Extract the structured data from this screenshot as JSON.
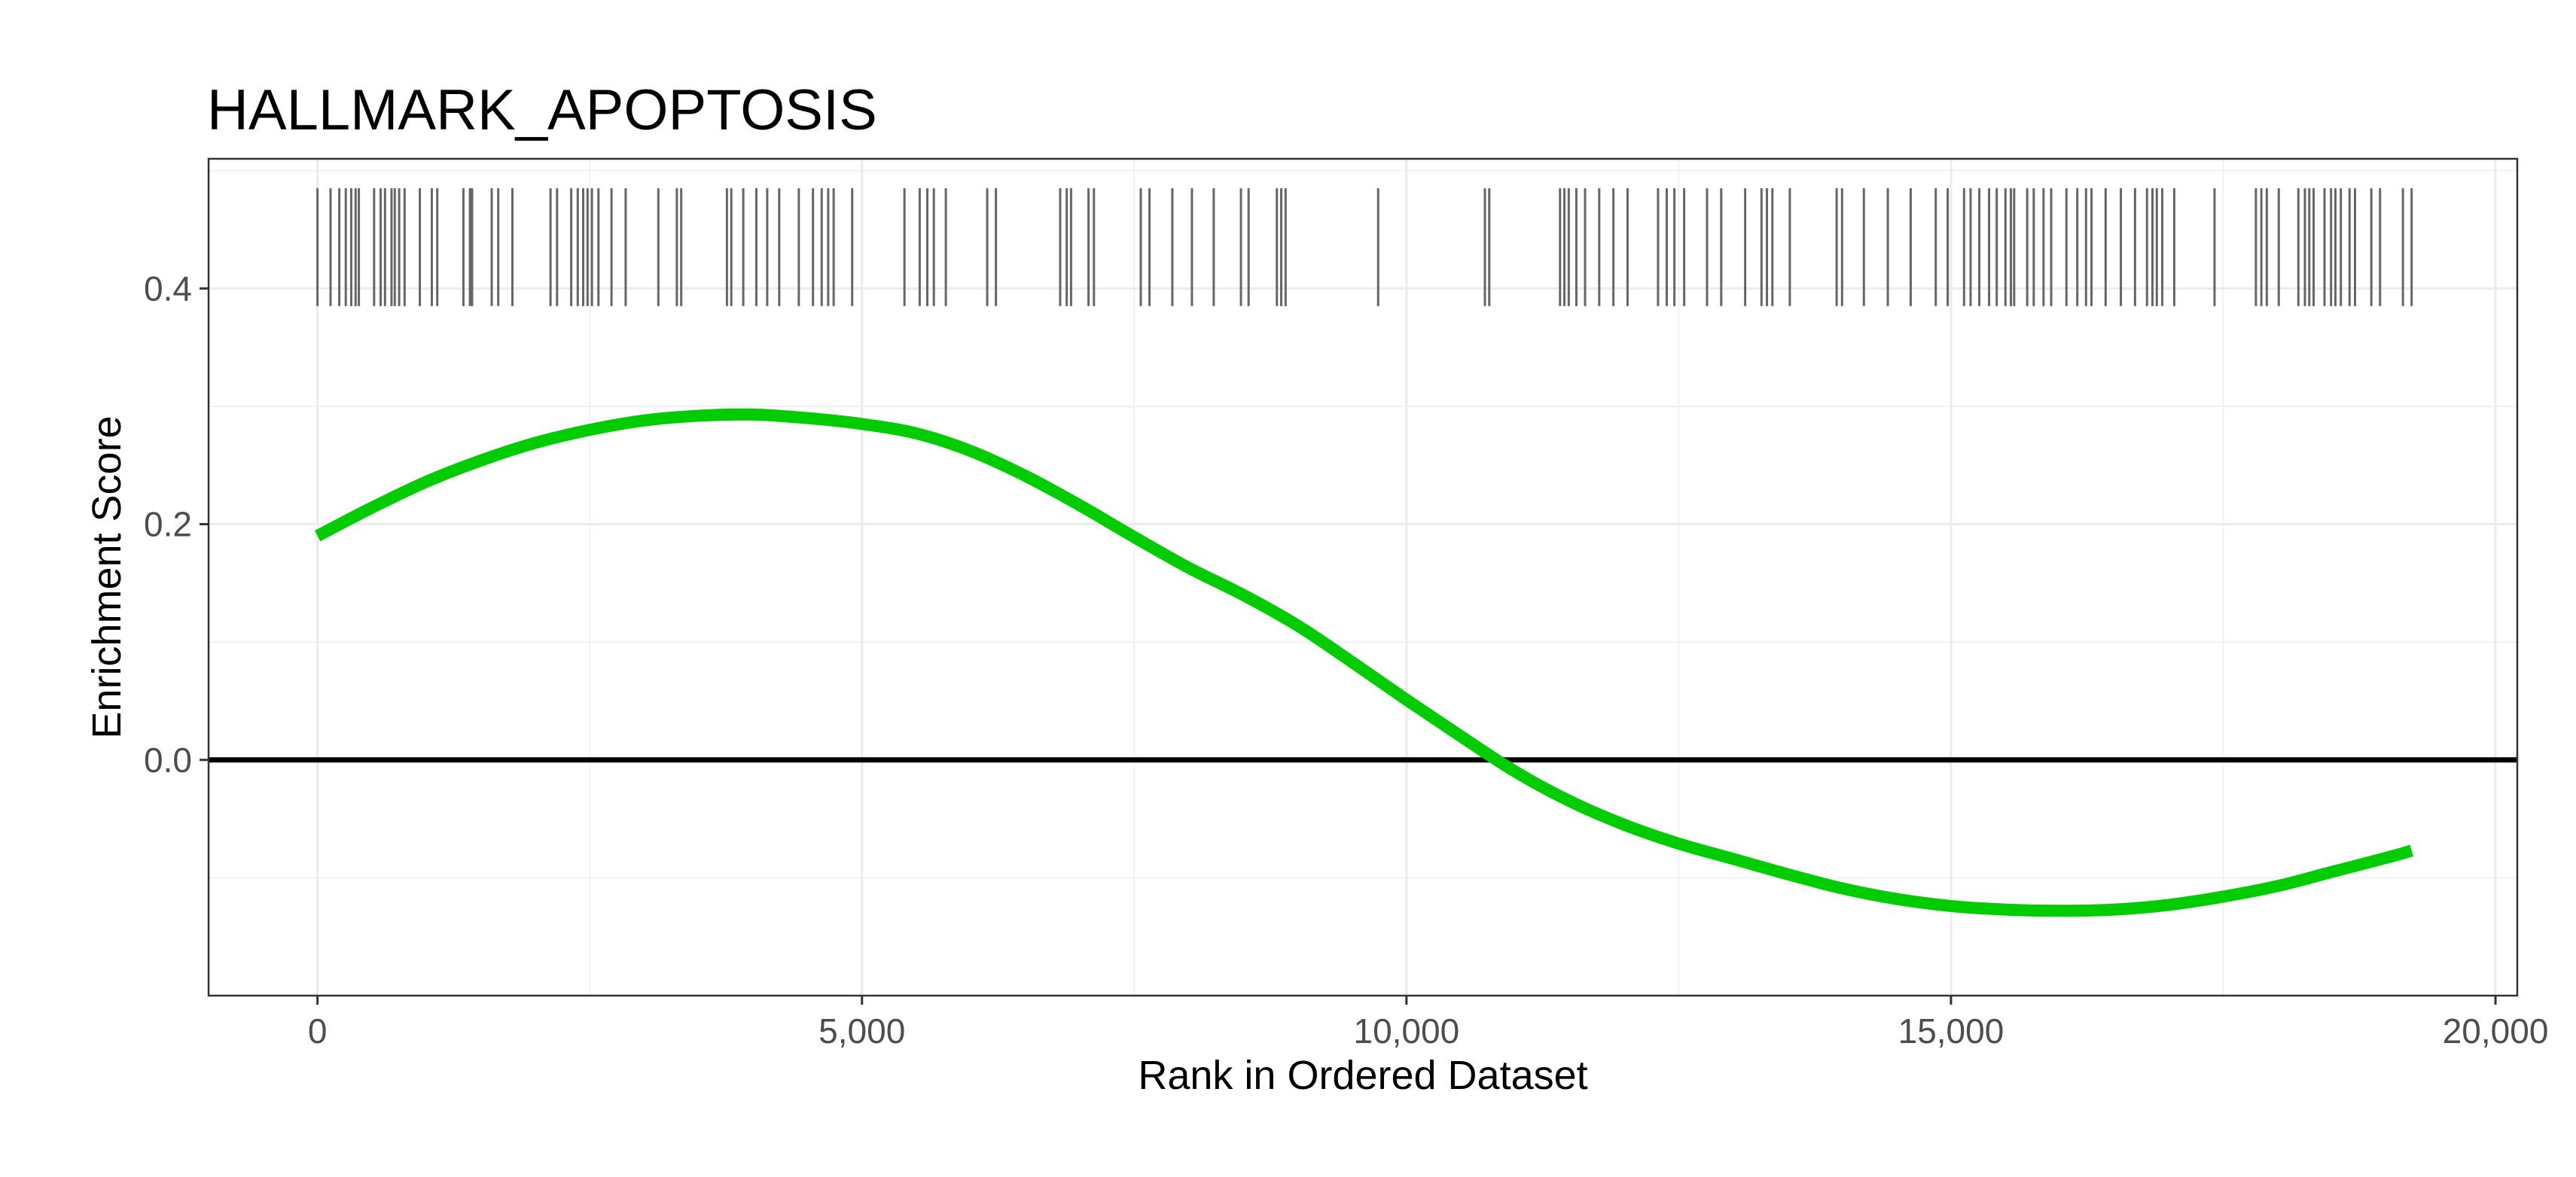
{
  "chart_data": {
    "type": "line",
    "title": "HALLMARK_APOPTOSIS",
    "xlabel": "Rank in Ordered Dataset",
    "ylabel": "Enrichment Score",
    "xlim": [
      -1000,
      20200
    ],
    "ylim": [
      -0.2,
      0.51
    ],
    "x_ticks": [
      {
        "value": 0,
        "label": "0"
      },
      {
        "value": 5000,
        "label": "5,000"
      },
      {
        "value": 10000,
        "label": "10,000"
      },
      {
        "value": 15000,
        "label": "15,000"
      },
      {
        "value": 20000,
        "label": "20,000"
      }
    ],
    "y_ticks": [
      {
        "value": 0.0,
        "label": "0.0"
      },
      {
        "value": 0.2,
        "label": "0.2"
      },
      {
        "value": 0.4,
        "label": "0.4"
      }
    ],
    "grid": true,
    "reference_line": {
      "y": 0.0,
      "color": "#000000"
    },
    "gene_hits": {
      "y_min": 0.385,
      "y_max": 0.485,
      "color": "#666666",
      "ranks": [
        0,
        120,
        200,
        260,
        310,
        350,
        380,
        520,
        580,
        620,
        680,
        710,
        750,
        800,
        940,
        1050,
        1100,
        1340,
        1400,
        1420,
        1600,
        1660,
        1790,
        2140,
        2200,
        2330,
        2390,
        2440,
        2480,
        2520,
        2580,
        2700,
        2830,
        3130,
        3300,
        3340,
        3760,
        3800,
        3910,
        4030,
        4130,
        4240,
        4420,
        4550,
        4630,
        4690,
        4740,
        4910,
        5390,
        5530,
        5600,
        5660,
        5770,
        6150,
        6230,
        6820,
        6880,
        6920,
        7080,
        7130,
        7560,
        7640,
        7850,
        8030,
        8230,
        8480,
        8550,
        8810,
        8850,
        8890,
        9740,
        10720,
        10760,
        11410,
        11450,
        11490,
        11560,
        11640,
        11770,
        11900,
        12030,
        12310,
        12390,
        12460,
        12550,
        12760,
        12890,
        13110,
        13260,
        13310,
        13360,
        13520,
        13950,
        14000,
        14200,
        14420,
        14630,
        14860,
        14970,
        15120,
        15180,
        15260,
        15350,
        15420,
        15500,
        15550,
        15580,
        15700,
        15760,
        15850,
        15920,
        16060,
        16160,
        16240,
        16290,
        16420,
        16560,
        16690,
        16800,
        16850,
        16890,
        16940,
        17050,
        17420,
        17800,
        17850,
        17900,
        18010,
        18190,
        18250,
        18290,
        18330,
        18430,
        18490,
        18530,
        18580,
        18660,
        18710,
        18860,
        18940,
        19150,
        19230
      ],
      "stroke_width": 3
    },
    "series": [
      {
        "color": "#00cc00",
        "x": [
          0,
          500,
          1000,
          1500,
          2000,
          2500,
          3000,
          3500,
          4000,
          4500,
          5000,
          5500,
          6000,
          6500,
          7000,
          7500,
          8000,
          8500,
          9000,
          9500,
          10000,
          10500,
          11000,
          11500,
          12000,
          12500,
          13000,
          13500,
          14000,
          14500,
          15000,
          15500,
          16000,
          16500,
          17000,
          17500,
          18000,
          18500,
          19000,
          19230
        ],
        "y": [
          0.19,
          0.214,
          0.236,
          0.254,
          0.269,
          0.28,
          0.288,
          0.292,
          0.293,
          0.29,
          0.285,
          0.277,
          0.262,
          0.241,
          0.216,
          0.189,
          0.163,
          0.14,
          0.114,
          0.083,
          0.051,
          0.02,
          -0.01,
          -0.035,
          -0.055,
          -0.071,
          -0.084,
          -0.097,
          -0.109,
          -0.118,
          -0.124,
          -0.127,
          -0.128,
          -0.127,
          -0.123,
          -0.116,
          -0.107,
          -0.095,
          -0.083,
          -0.077
        ]
      }
    ]
  }
}
